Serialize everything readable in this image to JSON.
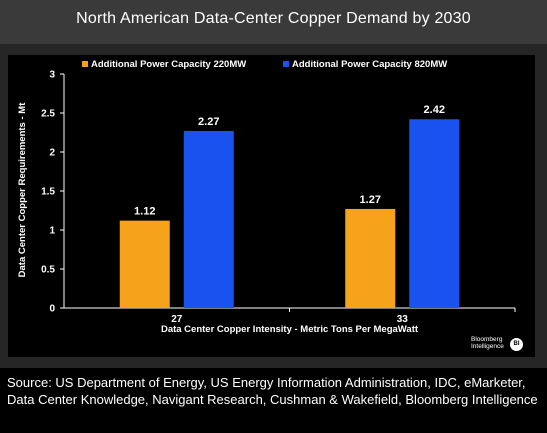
{
  "title": "North American Data-Center Copper Demand by 2030",
  "source": "Source: US Department of Energy, US Energy Information Administration, IDC, eMarketer, Data Center Knowledge, Navigant Research, Cushman & Wakefield, Bloomberg Intelligence",
  "logo": {
    "line1": "Bloomberg",
    "line2": "Intelligence",
    "badge": "BI"
  },
  "colors": {
    "background": "#262626",
    "plot_background": "#000000",
    "series_220": "#f7a21b",
    "series_820": "#1a52f0",
    "text": "#ffffff"
  },
  "chart_data": {
    "type": "bar",
    "title": "North American Data-Center Copper Demand by 2030",
    "xlabel": "Data Center Copper Intensity - Metric Tons Per MegaWatt",
    "ylabel": "Data Center Copper Requirements - Mt",
    "categories": [
      "27",
      "33"
    ],
    "series": [
      {
        "name": "Additional Power Capacity 220MW",
        "values": [
          1.12,
          1.27
        ],
        "color": "#f7a21b"
      },
      {
        "name": "Additional Power Capacity 820MW",
        "values": [
          2.27,
          2.42
        ],
        "color": "#1a52f0"
      }
    ],
    "ylim": [
      0,
      3
    ],
    "yticks": [
      "0",
      "0.5",
      "1",
      "1.5",
      "2",
      "2.5",
      "3"
    ],
    "data_labels": true,
    "grid": false,
    "legend": "top"
  }
}
